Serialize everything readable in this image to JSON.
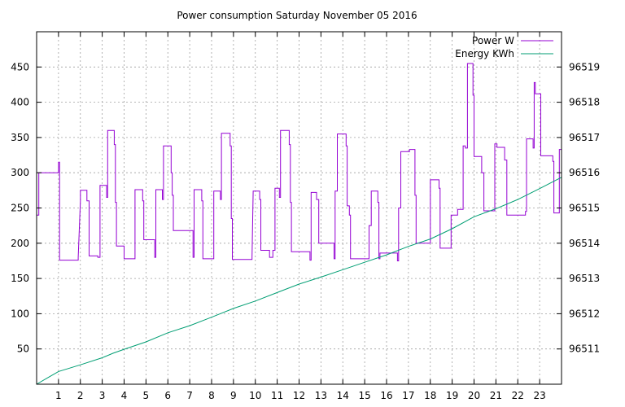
{
  "chart_data": {
    "type": "line",
    "title": "Power consumption Saturday November 05 2016",
    "xlabel": "",
    "ylabel": "",
    "y2label": "",
    "xlim": [
      0,
      24
    ],
    "ylim": [
      0,
      500
    ],
    "y2lim": [
      96510.0,
      96520.0
    ],
    "x_ticks": [
      1,
      2,
      3,
      4,
      5,
      6,
      7,
      8,
      9,
      10,
      11,
      12,
      13,
      14,
      15,
      16,
      17,
      18,
      19,
      20,
      21,
      22,
      23
    ],
    "y_ticks": [
      50,
      100,
      150,
      200,
      250,
      300,
      350,
      400,
      450
    ],
    "y2_ticks": [
      96511,
      96512,
      96513,
      96514,
      96515,
      96516,
      96517,
      96518,
      96519
    ],
    "grid": true,
    "legend_position": "top-right",
    "series": [
      {
        "name": "Power W",
        "axis": "left",
        "color": "#9400d3",
        "points": [
          [
            0.0,
            240
          ],
          [
            0.1,
            240
          ],
          [
            0.1,
            300
          ],
          [
            1.0,
            300
          ],
          [
            1.0,
            315
          ],
          [
            1.05,
            315
          ],
          [
            1.05,
            176
          ],
          [
            1.9,
            176
          ],
          [
            1.9,
            180
          ],
          [
            2.0,
            260
          ],
          [
            2.0,
            275
          ],
          [
            2.3,
            275
          ],
          [
            2.3,
            260
          ],
          [
            2.4,
            260
          ],
          [
            2.4,
            182
          ],
          [
            2.8,
            182
          ],
          [
            2.8,
            180
          ],
          [
            2.9,
            180
          ],
          [
            2.9,
            282
          ],
          [
            3.2,
            282
          ],
          [
            3.2,
            265
          ],
          [
            3.25,
            265
          ],
          [
            3.25,
            360
          ],
          [
            3.55,
            360
          ],
          [
            3.55,
            340
          ],
          [
            3.6,
            340
          ],
          [
            3.6,
            258
          ],
          [
            3.65,
            258
          ],
          [
            3.65,
            196
          ],
          [
            4.0,
            196
          ],
          [
            4.0,
            178
          ],
          [
            4.5,
            178
          ],
          [
            4.5,
            276
          ],
          [
            4.85,
            276
          ],
          [
            4.85,
            260
          ],
          [
            4.9,
            260
          ],
          [
            4.9,
            205
          ],
          [
            5.4,
            205
          ],
          [
            5.4,
            180
          ],
          [
            5.45,
            180
          ],
          [
            5.45,
            276
          ],
          [
            5.75,
            276
          ],
          [
            5.75,
            262
          ],
          [
            5.8,
            262
          ],
          [
            5.8,
            338
          ],
          [
            6.15,
            338
          ],
          [
            6.15,
            300
          ],
          [
            6.2,
            300
          ],
          [
            6.2,
            268
          ],
          [
            6.25,
            268
          ],
          [
            6.25,
            218
          ],
          [
            7.15,
            218
          ],
          [
            7.15,
            180
          ],
          [
            7.2,
            180
          ],
          [
            7.2,
            276
          ],
          [
            7.55,
            276
          ],
          [
            7.55,
            260
          ],
          [
            7.6,
            260
          ],
          [
            7.6,
            178
          ],
          [
            8.1,
            178
          ],
          [
            8.1,
            274
          ],
          [
            8.4,
            274
          ],
          [
            8.4,
            262
          ],
          [
            8.45,
            262
          ],
          [
            8.45,
            356
          ],
          [
            8.85,
            356
          ],
          [
            8.85,
            338
          ],
          [
            8.9,
            338
          ],
          [
            8.9,
            235
          ],
          [
            8.95,
            235
          ],
          [
            8.95,
            177
          ],
          [
            9.85,
            177
          ],
          [
            9.85,
            180
          ],
          [
            9.9,
            274
          ],
          [
            10.2,
            274
          ],
          [
            10.2,
            262
          ],
          [
            10.25,
            262
          ],
          [
            10.25,
            190
          ],
          [
            10.65,
            190
          ],
          [
            10.65,
            180
          ],
          [
            10.8,
            180
          ],
          [
            10.8,
            190
          ],
          [
            10.9,
            190
          ],
          [
            10.9,
            278
          ],
          [
            11.1,
            278
          ],
          [
            11.1,
            265
          ],
          [
            11.15,
            265
          ],
          [
            11.15,
            360
          ],
          [
            11.55,
            360
          ],
          [
            11.55,
            340
          ],
          [
            11.6,
            340
          ],
          [
            11.6,
            258
          ],
          [
            11.65,
            258
          ],
          [
            11.65,
            188
          ],
          [
            12.5,
            188
          ],
          [
            12.5,
            176
          ],
          [
            12.55,
            176
          ],
          [
            12.55,
            272
          ],
          [
            12.8,
            272
          ],
          [
            12.8,
            262
          ],
          [
            12.9,
            262
          ],
          [
            12.9,
            200
          ],
          [
            13.6,
            200
          ],
          [
            13.6,
            178
          ],
          [
            13.65,
            178
          ],
          [
            13.65,
            274
          ],
          [
            13.75,
            274
          ],
          [
            13.75,
            355
          ],
          [
            14.15,
            355
          ],
          [
            14.15,
            338
          ],
          [
            14.2,
            338
          ],
          [
            14.2,
            253
          ],
          [
            14.3,
            253
          ],
          [
            14.3,
            240
          ],
          [
            14.35,
            240
          ],
          [
            14.35,
            178
          ],
          [
            15.2,
            178
          ],
          [
            15.2,
            225
          ],
          [
            15.3,
            225
          ],
          [
            15.3,
            274
          ],
          [
            15.6,
            274
          ],
          [
            15.6,
            258
          ],
          [
            15.65,
            258
          ],
          [
            15.65,
            178
          ],
          [
            15.7,
            178
          ],
          [
            15.7,
            186
          ],
          [
            16.5,
            186
          ],
          [
            16.5,
            175
          ],
          [
            16.55,
            175
          ],
          [
            16.55,
            250
          ],
          [
            16.65,
            250
          ],
          [
            16.65,
            330
          ],
          [
            17.05,
            330
          ],
          [
            17.05,
            333
          ],
          [
            17.3,
            333
          ],
          [
            17.3,
            268
          ],
          [
            17.35,
            268
          ],
          [
            17.35,
            200
          ],
          [
            18.0,
            200
          ],
          [
            18.0,
            290
          ],
          [
            18.4,
            290
          ],
          [
            18.4,
            278
          ],
          [
            18.45,
            278
          ],
          [
            18.45,
            193
          ],
          [
            18.95,
            193
          ],
          [
            18.95,
            240
          ],
          [
            19.25,
            240
          ],
          [
            19.25,
            248
          ],
          [
            19.5,
            248
          ],
          [
            19.5,
            338
          ],
          [
            19.6,
            338
          ],
          [
            19.6,
            335
          ],
          [
            19.7,
            335
          ],
          [
            19.7,
            455
          ],
          [
            19.95,
            455
          ],
          [
            19.95,
            410
          ],
          [
            20.0,
            410
          ],
          [
            20.0,
            323
          ],
          [
            20.35,
            323
          ],
          [
            20.35,
            300
          ],
          [
            20.45,
            300
          ],
          [
            20.45,
            246
          ],
          [
            20.95,
            246
          ],
          [
            20.95,
            341
          ],
          [
            21.05,
            341
          ],
          [
            21.05,
            336
          ],
          [
            21.4,
            336
          ],
          [
            21.4,
            318
          ],
          [
            21.5,
            318
          ],
          [
            21.5,
            240
          ],
          [
            22.35,
            240
          ],
          [
            22.35,
            245
          ],
          [
            22.4,
            245
          ],
          [
            22.4,
            348
          ],
          [
            22.7,
            348
          ],
          [
            22.7,
            335
          ],
          [
            22.75,
            335
          ],
          [
            22.75,
            428
          ],
          [
            22.8,
            428
          ],
          [
            22.8,
            412
          ],
          [
            23.05,
            412
          ],
          [
            23.05,
            324
          ],
          [
            23.6,
            324
          ],
          [
            23.6,
            316
          ],
          [
            23.65,
            316
          ],
          [
            23.65,
            243
          ],
          [
            23.9,
            243
          ],
          [
            23.9,
            333
          ],
          [
            24.0,
            333
          ]
        ]
      },
      {
        "name": "Energy KWh",
        "axis": "right",
        "color": "#009e73",
        "points": [
          [
            0.0,
            96510.0
          ],
          [
            0.5,
            96510.18
          ],
          [
            1.0,
            96510.36
          ],
          [
            2.0,
            96510.55
          ],
          [
            3.0,
            96510.75
          ],
          [
            3.5,
            96510.88
          ],
          [
            4.0,
            96510.99
          ],
          [
            5.0,
            96511.2
          ],
          [
            6.0,
            96511.46
          ],
          [
            7.0,
            96511.66
          ],
          [
            8.0,
            96511.9
          ],
          [
            9.0,
            96512.15
          ],
          [
            10.0,
            96512.36
          ],
          [
            11.0,
            96512.6
          ],
          [
            12.0,
            96512.84
          ],
          [
            13.0,
            96513.04
          ],
          [
            14.0,
            96513.25
          ],
          [
            15.0,
            96513.46
          ],
          [
            16.0,
            96513.67
          ],
          [
            17.0,
            96513.91
          ],
          [
            18.0,
            96514.12
          ],
          [
            19.0,
            96514.41
          ],
          [
            20.0,
            96514.75
          ],
          [
            21.0,
            96514.98
          ],
          [
            22.0,
            96515.24
          ],
          [
            23.0,
            96515.55
          ],
          [
            24.0,
            96515.87
          ]
        ]
      }
    ]
  }
}
